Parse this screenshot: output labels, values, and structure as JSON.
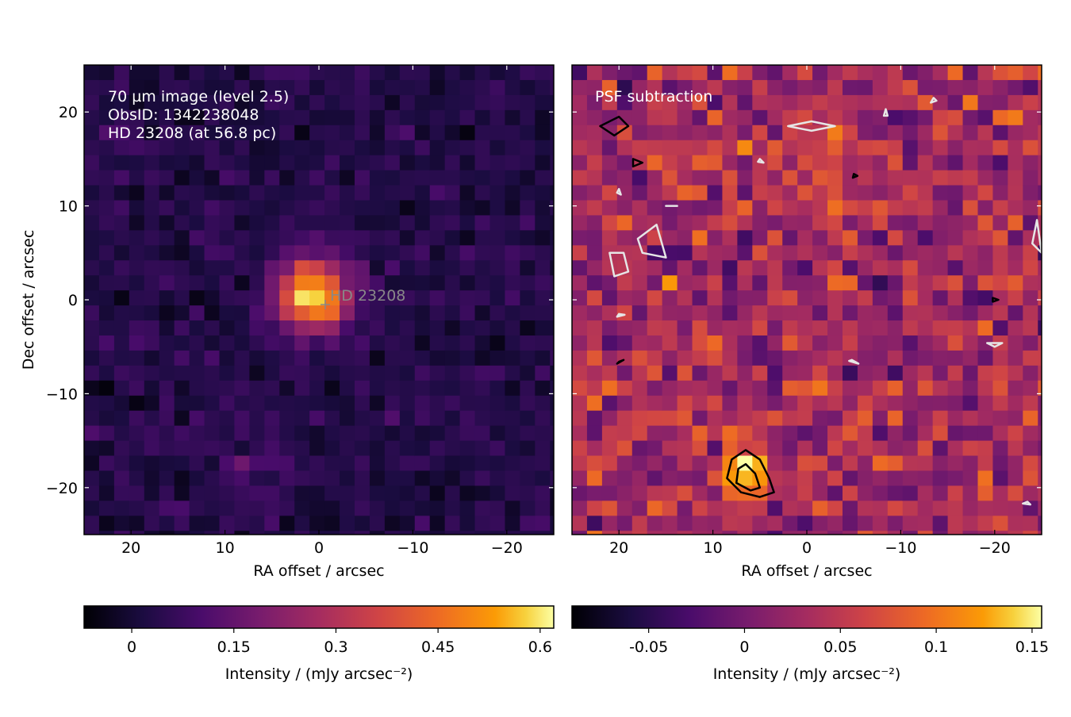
{
  "chart_data": [
    {
      "type": "heatmap",
      "panel": "left",
      "annotation_lines": [
        "70 µm image (level 2.5)",
        "ObsID: 1342238048",
        "HD 23208 (at 56.8 pc)"
      ],
      "star_label": "HD  23208",
      "star_position": [
        0,
        0
      ],
      "xlabel": "RA offset / arcsec",
      "ylabel": "Dec offset / arcsec",
      "xlim": [
        25,
        -25
      ],
      "ylim": [
        -25,
        25
      ],
      "xticks": [
        20,
        10,
        0,
        -10,
        -20
      ],
      "xtick_labels": [
        "20",
        "10",
        "0",
        "−10",
        "−20"
      ],
      "yticks": [
        20,
        10,
        0,
        -10,
        -20
      ],
      "ytick_labels": [
        "20",
        "10",
        "0",
        "−10",
        "−20"
      ],
      "grid": false,
      "colormap": "inferno",
      "pixel_scale_arcsec": 1.6,
      "colorbar": {
        "range": [
          -0.07,
          0.62
        ],
        "ticks": [
          0,
          0.15,
          0.3,
          0.45,
          0.6
        ],
        "tick_labels": [
          "0",
          "0.15",
          "0.3",
          "0.45",
          "0.6"
        ],
        "label": "Intensity / (mJy arcsec⁻²)"
      },
      "background": {
        "level": 0.03,
        "noise": 0.03
      },
      "features": [
        {
          "ra": 0.5,
          "dec": 0.5,
          "peak": 0.6,
          "sigma_arcsec": 2.6,
          "note": "point source"
        },
        {
          "ra": 6.5,
          "dec": -17.5,
          "peak": 0.07,
          "sigma_arcsec": 2.5
        }
      ]
    },
    {
      "type": "heatmap",
      "panel": "right",
      "annotation_lines": [
        "PSF subtraction"
      ],
      "xlabel": "RA offset / arcsec",
      "xlim": [
        25,
        -25
      ],
      "ylim": [
        -25,
        25
      ],
      "xticks": [
        20,
        10,
        0,
        -10,
        -20
      ],
      "xtick_labels": [
        "20",
        "10",
        "0",
        "−10",
        "−20"
      ],
      "yticks": [
        20,
        10,
        0,
        -10,
        -20
      ],
      "grid": false,
      "colormap": "inferno",
      "pixel_scale_arcsec": 1.6,
      "colorbar": {
        "range": [
          -0.09,
          0.155
        ],
        "ticks": [
          -0.05,
          0,
          0.05,
          0.1,
          0.15
        ],
        "tick_labels": [
          "-0.05",
          "0",
          "0.05",
          "0.1",
          "0.15"
        ],
        "label": "Intensity / (mJy arcsec⁻²)"
      },
      "background": {
        "level": 0.03,
        "noise": 0.03
      },
      "features": [
        {
          "ra": 6.5,
          "dec": -18.5,
          "peak": 0.15,
          "sigma_arcsec": 1.8,
          "note": "positive residual"
        }
      ],
      "contours": [
        {
          "color": "#000000",
          "points": [
            [
              6.5,
              -16
            ],
            [
              5,
              -17
            ],
            [
              4,
              -19
            ],
            [
              3.5,
              -20.5
            ],
            [
              5,
              -21
            ],
            [
              7,
              -20.5
            ],
            [
              8.5,
              -19
            ],
            [
              8,
              -17
            ]
          ]
        },
        {
          "color": "#000000",
          "points": [
            [
              6.5,
              -17.5
            ],
            [
              5.5,
              -18.5
            ],
            [
              5,
              -20
            ],
            [
              6,
              -20.3
            ],
            [
              7.5,
              -19.5
            ],
            [
              7.3,
              -18
            ]
          ]
        },
        {
          "color": "#000000",
          "points": [
            [
              22,
              18.5
            ],
            [
              20,
              19.5
            ],
            [
              19,
              18.5
            ],
            [
              20.5,
              17.5
            ]
          ]
        },
        {
          "color": "#000000",
          "points": [
            [
              18.5,
              15
            ],
            [
              17.5,
              14.6
            ],
            [
              18.5,
              14.2
            ]
          ]
        },
        {
          "color": "#000000",
          "points": [
            [
              20,
              -6.6
            ],
            [
              19.5,
              -6.4
            ],
            [
              20.2,
              -6.8
            ]
          ]
        },
        {
          "color": "#000000",
          "points": [
            [
              -19.8,
              0.2
            ],
            [
              -20.4,
              0
            ],
            [
              -19.8,
              -0.2
            ]
          ]
        },
        {
          "color": "#000000",
          "points": [
            [
              -5,
              13.4
            ],
            [
              -5.4,
              13.2
            ],
            [
              -4.9,
              13
            ]
          ]
        },
        {
          "color": "#e6e6e6",
          "points": [
            [
              2,
              18.5
            ],
            [
              -0.5,
              18
            ],
            [
              -3,
              18.5
            ],
            [
              -0.5,
              19
            ]
          ]
        },
        {
          "color": "#e6e6e6",
          "points": [
            [
              16,
              8
            ],
            [
              18,
              6.5
            ],
            [
              17.5,
              5
            ],
            [
              15,
              4.5
            ]
          ]
        },
        {
          "color": "#e6e6e6",
          "points": [
            [
              21,
              5
            ],
            [
              19.5,
              5
            ],
            [
              19,
              3
            ],
            [
              20.5,
              2.5
            ]
          ]
        },
        {
          "color": "#e6e6e6",
          "points": [
            [
              -20,
              -5
            ],
            [
              -19.2,
              -4.6
            ],
            [
              -20.8,
              -4.6
            ]
          ]
        },
        {
          "color": "#e6e6e6",
          "points": [
            [
              -4.5,
              -6.5
            ],
            [
              -5.5,
              -6.8
            ],
            [
              -4.8,
              -6.4
            ]
          ]
        },
        {
          "color": "#e6e6e6",
          "points": [
            [
              -24.5,
              8.5
            ],
            [
              -24,
              6
            ],
            [
              -25,
              5
            ]
          ]
        },
        {
          "color": "#e6e6e6",
          "points": [
            [
              -13.5,
              21.5
            ],
            [
              -13.2,
              21
            ],
            [
              -13.8,
              21.2
            ]
          ]
        },
        {
          "color": "#e6e6e6",
          "points": [
            [
              -8.4,
              20.3
            ],
            [
              -8.2,
              19.6
            ],
            [
              -8.6,
              19.6
            ]
          ]
        },
        {
          "color": "#e6e6e6",
          "points": [
            [
              15,
              10
            ],
            [
              13.8,
              10
            ]
          ]
        },
        {
          "color": "#e6e6e6",
          "points": [
            [
              20,
              11.8
            ],
            [
              19.8,
              11.2
            ],
            [
              20.2,
              11.4
            ]
          ]
        },
        {
          "color": "#e6e6e6",
          "points": [
            [
              5,
              15
            ],
            [
              4.6,
              14.6
            ],
            [
              5.2,
              14.7
            ]
          ]
        },
        {
          "color": "#e6e6e6",
          "points": [
            [
              20,
              -1.5
            ],
            [
              19.4,
              -1.6
            ],
            [
              20.2,
              -1.8
            ]
          ]
        },
        {
          "color": "#e6e6e6",
          "points": [
            [
              -23.5,
              -21.5
            ],
            [
              -23,
              -21.7
            ],
            [
              -23.8,
              -21.8
            ]
          ]
        }
      ]
    }
  ]
}
